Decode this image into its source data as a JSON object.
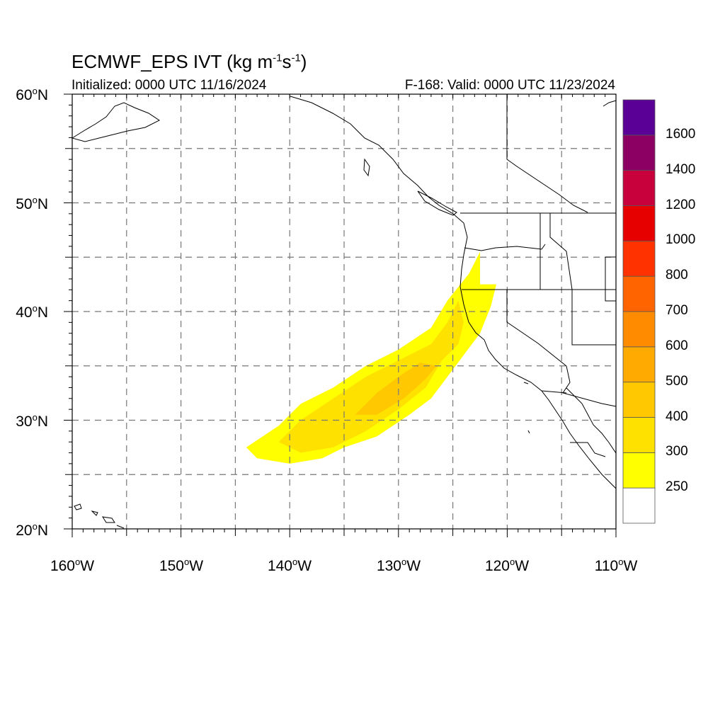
{
  "title": {
    "main": "ECMWF_EPS IVT (kg m",
    "exp1": "-1",
    "mid": "s",
    "exp2": "-1",
    "end": ")"
  },
  "subtitle": {
    "initialized": "Initialized: 0000 UTC 11/16/2024",
    "valid": "F-168: Valid: 0000 UTC 11/23/2024"
  },
  "map": {
    "lon_range": [
      -160,
      -110
    ],
    "lat_range": [
      20,
      60
    ],
    "grid": "dashed every 5 degrees",
    "lat_labels": [
      {
        "lat": 60,
        "num": "60",
        "deg": "o",
        "hemi": "N"
      },
      {
        "lat": 50,
        "num": "50",
        "deg": "o",
        "hemi": "N"
      },
      {
        "lat": 40,
        "num": "40",
        "deg": "o",
        "hemi": "N"
      },
      {
        "lat": 30,
        "num": "30",
        "deg": "o",
        "hemi": "N"
      },
      {
        "lat": 20,
        "num": "20",
        "deg": "o",
        "hemi": "N"
      }
    ],
    "lon_labels": [
      {
        "lon": -160,
        "num": "160",
        "deg": "o",
        "hemi": "W"
      },
      {
        "lon": -150,
        "num": "150",
        "deg": "o",
        "hemi": "W"
      },
      {
        "lon": -140,
        "num": "140",
        "deg": "o",
        "hemi": "W"
      },
      {
        "lon": -130,
        "num": "130",
        "deg": "o",
        "hemi": "W"
      },
      {
        "lon": -120,
        "num": "120",
        "deg": "o",
        "hemi": "W"
      },
      {
        "lon": -110,
        "num": "110",
        "deg": "o",
        "hemi": "W"
      }
    ],
    "ivt_region_lonlat": {
      "band_250_300": [
        [
          -144,
          27.5
        ],
        [
          -141,
          29.5
        ],
        [
          -139,
          31.5
        ],
        [
          -136,
          33
        ],
        [
          -133,
          35
        ],
        [
          -130,
          36.5
        ],
        [
          -127,
          38.5
        ],
        [
          -125.5,
          41
        ],
        [
          -123.5,
          43.5
        ],
        [
          -122.5,
          45.5
        ],
        [
          -122.5,
          42.5
        ],
        [
          -121,
          42.5
        ],
        [
          -121.5,
          40.5
        ],
        [
          -122.5,
          38
        ],
        [
          -124,
          36
        ],
        [
          -125.5,
          34
        ],
        [
          -127,
          32
        ],
        [
          -129,
          30.5
        ],
        [
          -132,
          28.5
        ],
        [
          -135,
          27.5
        ],
        [
          -137,
          26.5
        ],
        [
          -140,
          26
        ],
        [
          -143,
          26.5
        ]
      ],
      "band_300_400": [
        [
          -141,
          28
        ],
        [
          -139,
          30
        ],
        [
          -136,
          32
        ],
        [
          -133,
          34
        ],
        [
          -130,
          35.5
        ],
        [
          -127,
          37
        ],
        [
          -125.5,
          39
        ],
        [
          -124.5,
          41
        ],
        [
          -124,
          39
        ],
        [
          -124.5,
          37
        ],
        [
          -126,
          35.5
        ],
        [
          -127.5,
          33
        ],
        [
          -130,
          31
        ],
        [
          -133,
          29
        ],
        [
          -136,
          27.5
        ],
        [
          -139,
          27
        ]
      ],
      "band_400_500": [
        [
          -134,
          30.5
        ],
        [
          -132,
          32.5
        ],
        [
          -130,
          34
        ],
        [
          -128,
          35.3
        ],
        [
          -126.5,
          35
        ],
        [
          -127.5,
          33.8
        ],
        [
          -129.5,
          32
        ],
        [
          -132,
          30.5
        ]
      ]
    }
  },
  "colorbar": {
    "colors": [
      "#ffffff",
      "#ffff00",
      "#ffe100",
      "#ffc800",
      "#ffaa00",
      "#ff8c00",
      "#ff6400",
      "#ff3200",
      "#e60000",
      "#c8003c",
      "#8c0064",
      "#5a0096"
    ],
    "labels": [
      "250",
      "300",
      "400",
      "500",
      "600",
      "700",
      "800",
      "1000",
      "1200",
      "1400",
      "1600"
    ]
  }
}
